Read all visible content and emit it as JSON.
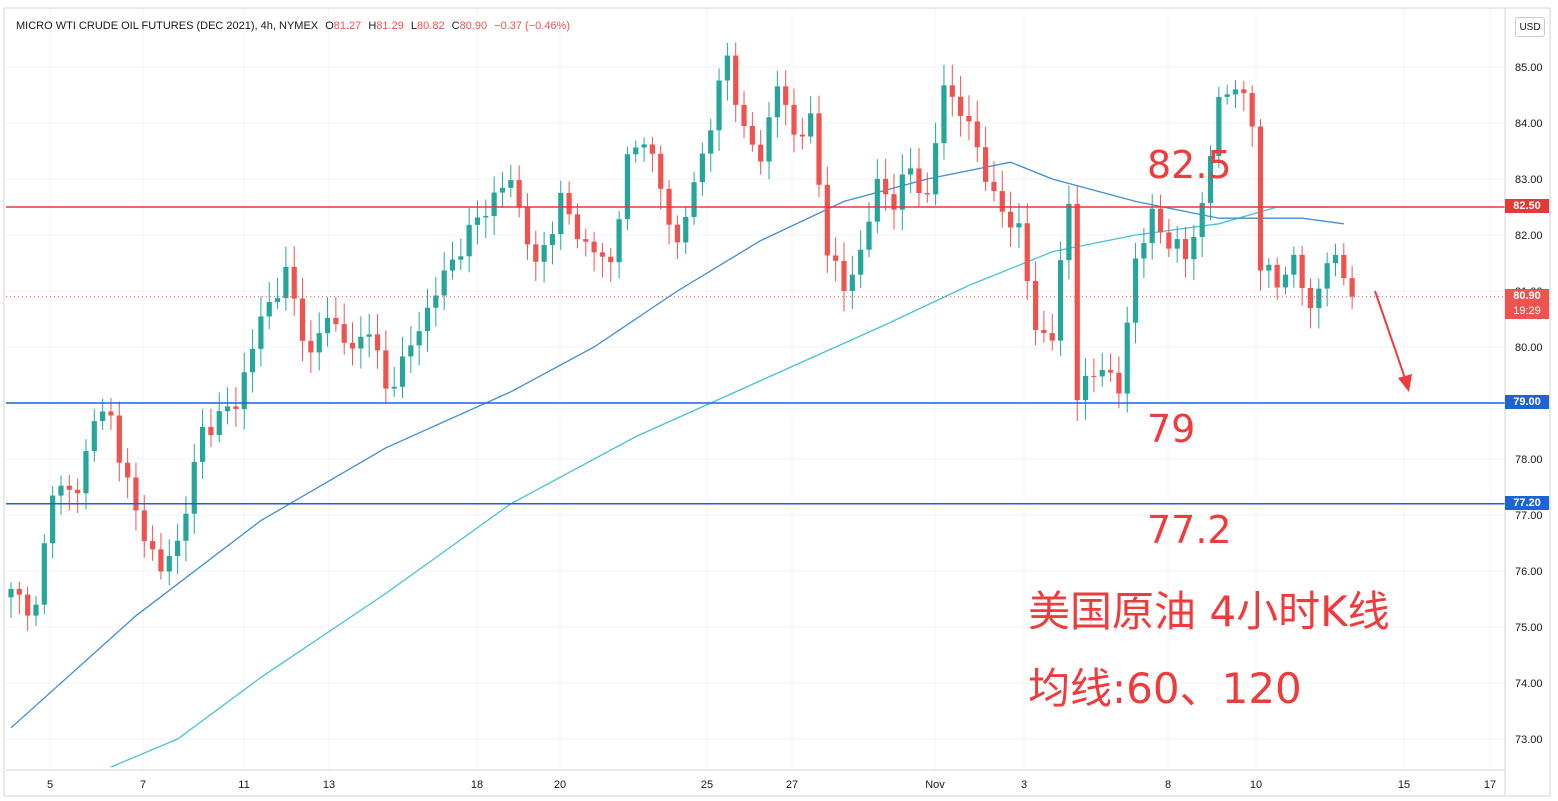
{
  "header": {
    "symbol": "MICRO WTI CRUDE OIL FUTURES (DEC 2021), 4h, NYMEX",
    "open_key": "O",
    "open": "81.27",
    "high_key": "H",
    "high": "81.29",
    "low_key": "L",
    "low": "80.82",
    "close_key": "C",
    "close": "80.90",
    "change": "−0.37 (−0.46%)"
  },
  "currency_button": "USD",
  "colors": {
    "up": "#26a69a",
    "down": "#ef5350",
    "ma60": "#3d8fd6",
    "ma120": "#47c2d8",
    "resistance": "#e53935",
    "support": "#1e63d6",
    "annotation": "#ef3b3b",
    "price_tag": "#ef5350"
  },
  "annotations": {
    "resistance_label": "82.5",
    "support_label_1": "79",
    "support_label_2": "77.2",
    "title_line_1": "美国原油 4小时K线",
    "title_line_2": "均线:60、120"
  },
  "price_tags": {
    "resistance": "82.50",
    "last_price": "80.90",
    "countdown": "19:29",
    "support_1": "79.00",
    "support_2": "77.20"
  },
  "chart_data": {
    "type": "candlestick",
    "y_range": [
      72.5,
      85.5
    ],
    "y_ticks": [
      "73.00",
      "74.00",
      "75.00",
      "76.00",
      "77.00",
      "78.00",
      "79.00",
      "80.00",
      "81.00",
      "82.00",
      "83.00",
      "84.00",
      "85.00"
    ],
    "x_ticks": [
      "5",
      "7",
      "11",
      "13",
      "18",
      "20",
      "25",
      "27",
      "Nov",
      "3",
      "8",
      "10",
      "15",
      "17"
    ],
    "horizontal_levels": [
      {
        "value": 82.5,
        "color": "#e53935"
      },
      {
        "value": 79.0,
        "color": "#1e63d6"
      },
      {
        "value": 77.2,
        "color": "#1e63d6"
      }
    ],
    "last_price": 80.9,
    "anchors": [
      [
        0,
        75.6
      ],
      [
        3,
        75.3
      ],
      [
        5,
        77.5
      ],
      [
        8,
        77.4
      ],
      [
        10,
        78.8
      ],
      [
        12,
        78.7
      ],
      [
        15,
        77.0
      ],
      [
        18,
        76.0
      ],
      [
        20,
        76.5
      ],
      [
        23,
        78.5
      ],
      [
        27,
        79.0
      ],
      [
        30,
        80.5
      ],
      [
        33,
        81.3
      ],
      [
        36,
        79.8
      ],
      [
        38,
        80.6
      ],
      [
        41,
        79.9
      ],
      [
        43,
        80.4
      ],
      [
        45,
        79.2
      ],
      [
        48,
        80.0
      ],
      [
        51,
        81.0
      ],
      [
        54,
        81.8
      ],
      [
        57,
        82.5
      ],
      [
        60,
        83.0
      ],
      [
        63,
        81.4
      ],
      [
        66,
        82.6
      ],
      [
        69,
        81.8
      ],
      [
        72,
        81.5
      ],
      [
        74,
        83.3
      ],
      [
        76,
        83.8
      ],
      [
        78,
        82.8
      ],
      [
        80,
        81.8
      ],
      [
        82,
        82.9
      ],
      [
        84,
        84.0
      ],
      [
        86,
        85.2
      ],
      [
        88,
        83.8
      ],
      [
        90,
        83.4
      ],
      [
        92,
        84.7
      ],
      [
        94,
        83.8
      ],
      [
        96,
        84.0
      ],
      [
        98,
        81.8
      ],
      [
        100,
        81.0
      ],
      [
        102,
        81.7
      ],
      [
        104,
        82.9
      ],
      [
        106,
        82.6
      ],
      [
        108,
        83.2
      ],
      [
        110,
        82.6
      ],
      [
        112,
        84.7
      ],
      [
        114,
        84.2
      ],
      [
        116,
        83.6
      ],
      [
        118,
        82.6
      ],
      [
        121,
        82.1
      ],
      [
        123,
        80.3
      ],
      [
        125,
        80.2
      ],
      [
        127,
        82.6
      ],
      [
        128,
        79.2
      ],
      [
        129,
        79.3
      ],
      [
        131,
        79.7
      ],
      [
        133,
        79.2
      ],
      [
        135,
        81.6
      ],
      [
        137,
        82.3
      ],
      [
        139,
        81.9
      ],
      [
        141,
        81.6
      ],
      [
        143,
        82.5
      ],
      [
        145,
        84.4
      ],
      [
        147,
        84.7
      ],
      [
        149,
        84.0
      ],
      [
        150,
        81.5
      ],
      [
        152,
        81.1
      ],
      [
        154,
        81.6
      ],
      [
        156,
        80.6
      ],
      [
        158,
        81.6
      ],
      [
        160,
        81.3
      ],
      [
        161,
        80.9
      ]
    ],
    "ma60_path": [
      [
        0,
        73.2
      ],
      [
        15,
        75.2
      ],
      [
        30,
        76.9
      ],
      [
        45,
        78.2
      ],
      [
        60,
        79.2
      ],
      [
        70,
        80.0
      ],
      [
        80,
        81.0
      ],
      [
        90,
        81.9
      ],
      [
        100,
        82.6
      ],
      [
        110,
        83.0
      ],
      [
        120,
        83.3
      ],
      [
        125,
        83.0
      ],
      [
        135,
        82.6
      ],
      [
        145,
        82.3
      ],
      [
        155,
        82.3
      ],
      [
        160,
        82.2
      ]
    ],
    "ma120_path": [
      [
        12,
        72.5
      ],
      [
        20,
        73.0
      ],
      [
        30,
        74.1
      ],
      [
        45,
        75.6
      ],
      [
        60,
        77.2
      ],
      [
        75,
        78.4
      ],
      [
        90,
        79.4
      ],
      [
        105,
        80.4
      ],
      [
        115,
        81.1
      ],
      [
        125,
        81.7
      ],
      [
        135,
        82.0
      ],
      [
        145,
        82.2
      ],
      [
        152,
        82.5
      ],
      [
        158,
        82.5
      ]
    ]
  }
}
